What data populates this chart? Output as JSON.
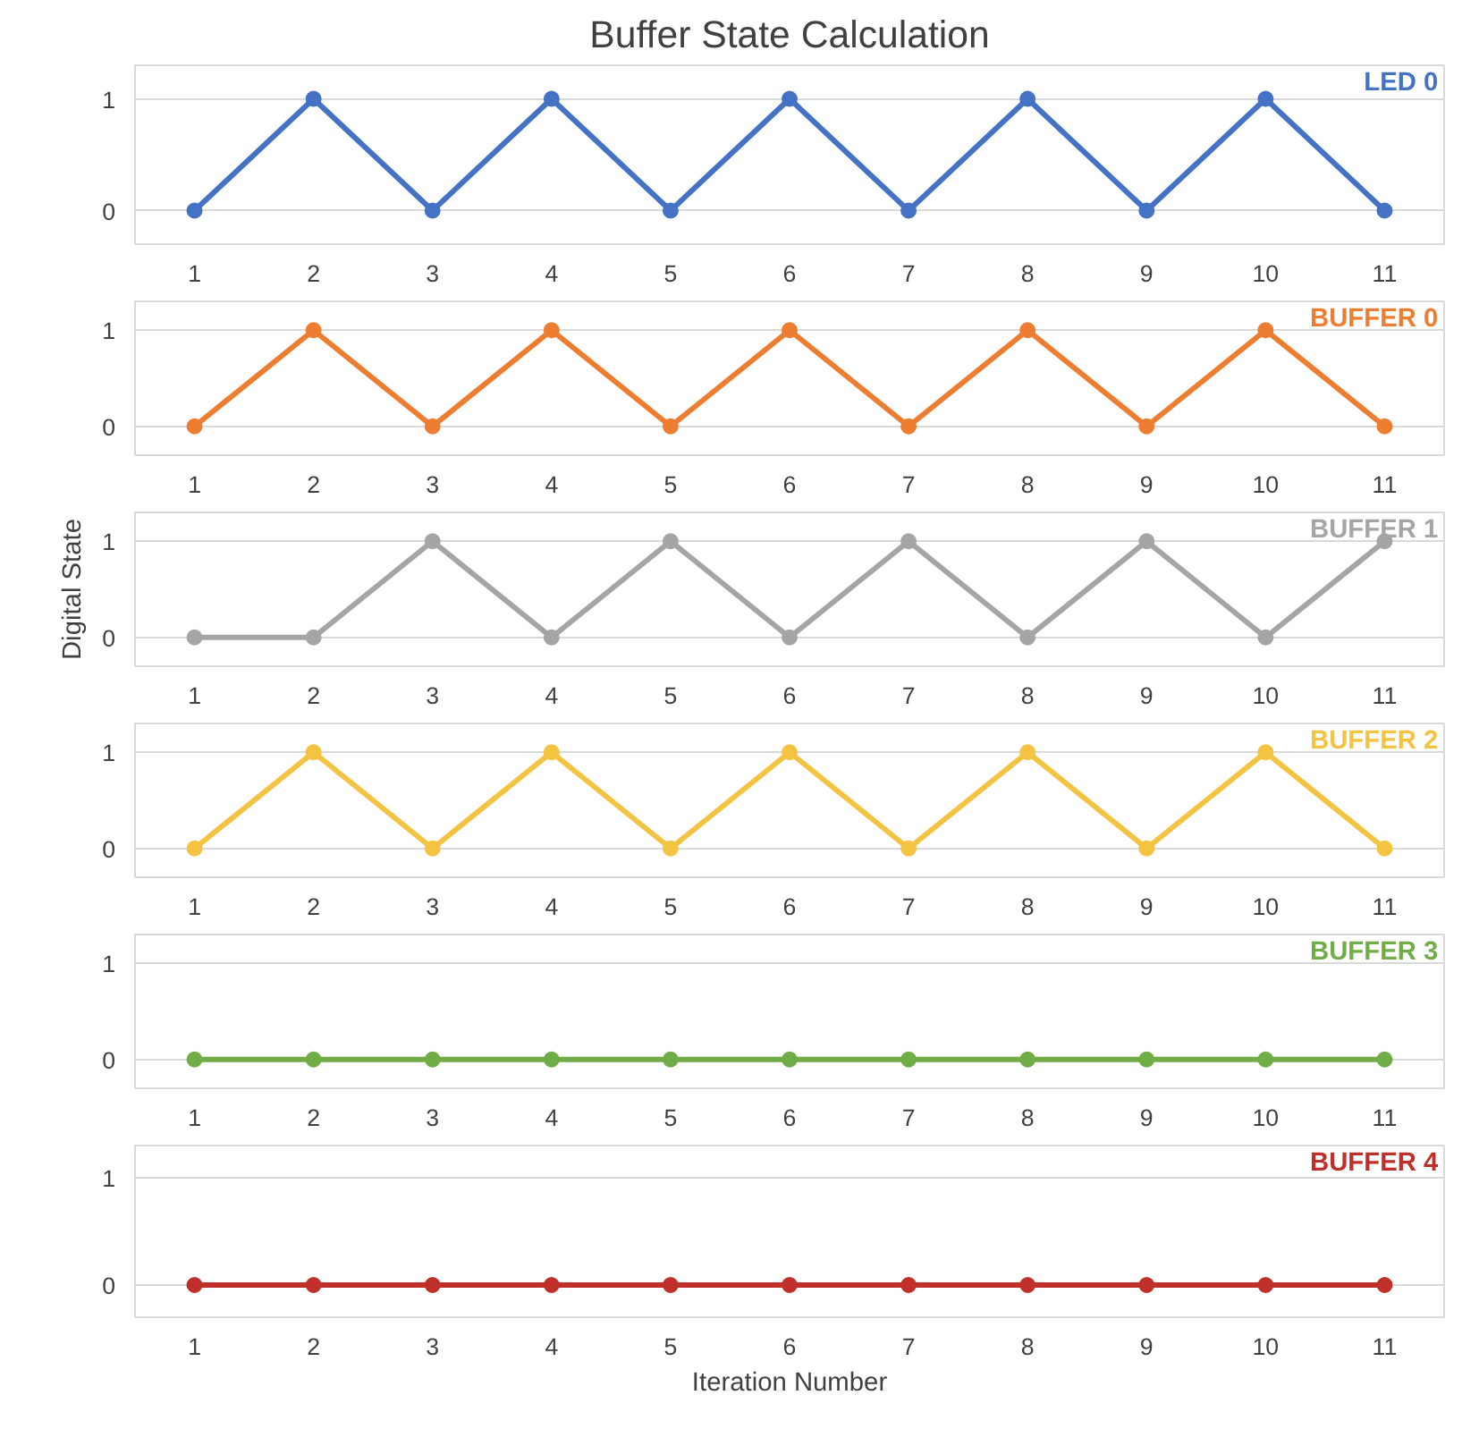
{
  "chart_data": [
    {
      "type": "line",
      "title": "Buffer State Calculation",
      "categories": [
        "1",
        "2",
        "3",
        "4",
        "5",
        "6",
        "7",
        "8",
        "9",
        "10",
        "11"
      ],
      "ylim": [
        -0.3,
        1.3
      ],
      "yticks": [
        0,
        1
      ],
      "grid": "y",
      "marker": "circle",
      "series": [
        {
          "name": "LED 0",
          "color": "#4472c4",
          "values": [
            0,
            1,
            0,
            1,
            0,
            1,
            0,
            1,
            0,
            1,
            0
          ]
        }
      ]
    },
    {
      "type": "line",
      "categories": [
        "1",
        "2",
        "3",
        "4",
        "5",
        "6",
        "7",
        "8",
        "9",
        "10",
        "11"
      ],
      "ylim": [
        -0.3,
        1.3
      ],
      "yticks": [
        0,
        1
      ],
      "grid": "y",
      "marker": "circle",
      "series": [
        {
          "name": "BUFFER 0",
          "color": "#ed7d31",
          "values": [
            0,
            1,
            0,
            1,
            0,
            1,
            0,
            1,
            0,
            1,
            0
          ]
        }
      ]
    },
    {
      "type": "line",
      "ylabel": "Digital State",
      "categories": [
        "1",
        "2",
        "3",
        "4",
        "5",
        "6",
        "7",
        "8",
        "9",
        "10",
        "11"
      ],
      "ylim": [
        -0.3,
        1.3
      ],
      "yticks": [
        0,
        1
      ],
      "grid": "y",
      "marker": "circle",
      "series": [
        {
          "name": "BUFFER 1",
          "color": "#a5a5a5",
          "values": [
            0,
            0,
            1,
            0,
            1,
            0,
            1,
            0,
            1,
            0,
            1
          ]
        }
      ]
    },
    {
      "type": "line",
      "categories": [
        "1",
        "2",
        "3",
        "4",
        "5",
        "6",
        "7",
        "8",
        "9",
        "10",
        "11"
      ],
      "ylim": [
        -0.3,
        1.3
      ],
      "yticks": [
        0,
        1
      ],
      "grid": "y",
      "marker": "circle",
      "series": [
        {
          "name": "BUFFER 2",
          "color": "#f5c342",
          "values": [
            0,
            1,
            0,
            1,
            0,
            1,
            0,
            1,
            0,
            1,
            0
          ]
        }
      ]
    },
    {
      "type": "line",
      "categories": [
        "1",
        "2",
        "3",
        "4",
        "5",
        "6",
        "7",
        "8",
        "9",
        "10",
        "11"
      ],
      "ylim": [
        -0.3,
        1.3
      ],
      "yticks": [
        0,
        1
      ],
      "grid": "y",
      "marker": "circle",
      "series": [
        {
          "name": "BUFFER 3",
          "color": "#70ad47",
          "values": [
            0,
            0,
            0,
            0,
            0,
            0,
            0,
            0,
            0,
            0,
            0
          ]
        }
      ]
    },
    {
      "type": "line",
      "xlabel": "Iteration Number",
      "categories": [
        "1",
        "2",
        "3",
        "4",
        "5",
        "6",
        "7",
        "8",
        "9",
        "10",
        "11"
      ],
      "ylim": [
        -0.3,
        1.3
      ],
      "yticks": [
        0,
        1
      ],
      "grid": "y",
      "marker": "circle",
      "series": [
        {
          "name": "BUFFER 4",
          "color": "#c0302a",
          "values": [
            0,
            0,
            0,
            0,
            0,
            0,
            0,
            0,
            0,
            0,
            0
          ]
        }
      ]
    }
  ]
}
